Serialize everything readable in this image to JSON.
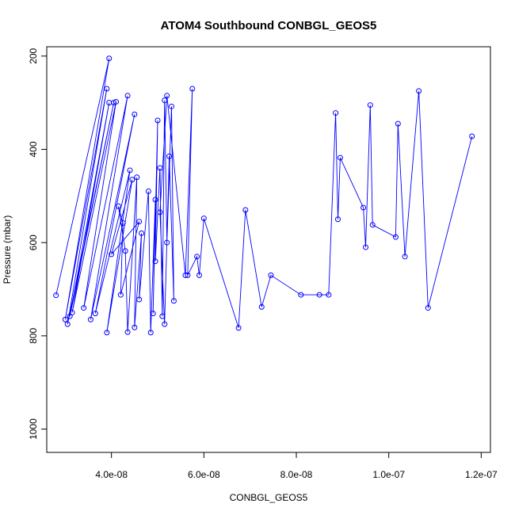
{
  "chart_data": {
    "type": "scatter",
    "title": "ATOM4 Southbound CONBGL_GEOS5",
    "xlabel": "CONBGL_GEOS5",
    "ylabel": "Pressure (mbar)",
    "xlim": [
      2.6e-08,
      1.22e-07
    ],
    "ylim": [
      1050,
      180
    ],
    "y_reversed": true,
    "x_ticks": [
      4e-08,
      6e-08,
      8e-08,
      1e-07,
      1.2e-07
    ],
    "x_tick_labels": [
      "4.0e-08",
      "6.0e-08",
      "8.0e-08",
      "1.0e-07",
      "1.2e-07"
    ],
    "y_ticks": [
      200,
      400,
      600,
      800,
      1000
    ],
    "y_tick_labels": [
      "200",
      "400",
      "600",
      "800",
      "1000"
    ],
    "grid": false,
    "legend": "none",
    "series": [
      {
        "color": "#0000ff",
        "marker": "open-circle",
        "x": [
          2.8e-08,
          3.95e-08,
          3e-08,
          3.9e-08,
          3.05e-08,
          4.05e-08,
          3.1e-08,
          3.95e-08,
          3.15e-08,
          4.1e-08,
          3.4e-08,
          4.35e-08,
          3.55e-08,
          4.5e-08,
          3.65e-08,
          4.4e-08,
          3.9e-08,
          4.45e-08,
          4e-08,
          4.6e-08,
          4.2e-08,
          4.25e-08,
          4.15e-08,
          4.3e-08,
          4.35e-08,
          4.55e-08,
          4.5e-08,
          4.65e-08,
          4.6e-08,
          4.8e-08,
          4.85e-08,
          4.95e-08,
          4.9e-08,
          5e-08,
          4.95e-08,
          5.05e-08,
          5.1e-08,
          5.15e-08,
          5.2e-08,
          5.3e-08,
          5.35e-08,
          5.25e-08,
          5.15e-08,
          5.05e-08,
          5.2e-08,
          5.6e-08,
          5.75e-08,
          5.65e-08,
          5.85e-08,
          5.9e-08,
          6e-08,
          6.75e-08,
          6.9e-08,
          7.25e-08,
          7.45e-08,
          8.1e-08,
          8.5e-08,
          8.7e-08,
          8.85e-08,
          8.9e-08,
          8.95e-08,
          9.45e-08,
          9.5e-08,
          9.6e-08,
          9.65e-08,
          1.015e-07,
          1.02e-07,
          1.035e-07,
          1.065e-07,
          1.085e-07,
          1.18e-07
        ],
        "y": [
          713,
          205,
          765,
          270,
          775,
          300,
          758,
          300,
          750,
          298,
          740,
          285,
          765,
          325,
          752,
          445,
          793,
          465,
          625,
          555,
          712,
          558,
          522,
          618,
          792,
          460,
          782,
          580,
          722,
          490,
          793,
          508,
          752,
          338,
          640,
          440,
          758,
          295,
          600,
          308,
          725,
          415,
          775,
          535,
          285,
          670,
          270,
          670,
          630,
          670,
          548,
          783,
          530,
          738,
          670,
          712,
          712,
          712,
          322,
          550,
          418,
          525,
          610,
          305,
          562,
          588,
          345,
          630,
          275,
          740,
          372
        ]
      }
    ]
  }
}
